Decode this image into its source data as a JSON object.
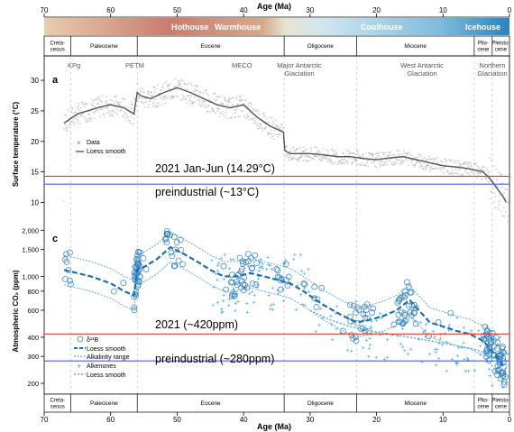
{
  "colors": {
    "hothouse": "#c97c6e",
    "warmhouse": "#d6a98c",
    "coolhouse": "#a9d3e6",
    "icehouse": "#3c8fc4",
    "temp_points": "#8a8a8a",
    "temp_smooth": "#555555",
    "boron": "#2f7fbf",
    "boron_smooth": "#1f6fa8",
    "alkenone": "#2aa0d6",
    "line_2021": "#e23a3a",
    "line_preind": "#4a5fe0"
  },
  "axis": {
    "top_label": "Age (Ma)",
    "bottom_label": "Age (Ma)",
    "x_ticks": [
      "70",
      "60",
      "50",
      "40",
      "30",
      "20",
      "10",
      "0"
    ],
    "temp_ylabel": "Surface temperature (°C)",
    "temp_ticks": [
      "10",
      "15",
      "20",
      "25",
      "30"
    ],
    "co2_ylabel": "Atmospheric CO₂ (ppm)",
    "co2_ticks": [
      "200",
      "300",
      "400",
      "600",
      "800",
      "1,000",
      "1,500",
      "2,000"
    ]
  },
  "climate_states": [
    "Hothouse",
    "Warmhouse",
    "Coolhouse",
    "Icehouse"
  ],
  "epochs": [
    "Creta-\nceous",
    "Paleocene",
    "Eocene",
    "Oligocene",
    "Miocene",
    "Plio-\ncene",
    "Pleisto-\ncene"
  ],
  "panels": {
    "a": "a",
    "c": "c"
  },
  "events": {
    "kpg": "KPg",
    "petm": "PETM",
    "meco": "MECO",
    "major_antarctic": "Major Antarctic\nGlaciation",
    "west_antarctic": "West Antarctic\nGlaciation",
    "northern": "Northern\nGlaciation"
  },
  "legend_temp": [
    "Data",
    "Loess smooth"
  ],
  "legend_co2": [
    "δ¹¹B",
    "Loess smooth",
    "Alkalinity range",
    "Alkenones",
    "Loess smooth"
  ],
  "annotations": {
    "temp_2021": "2021 Jan-Jun (14.29°C)",
    "temp_preind": "preindustrial (~13°C)",
    "co2_2021": "2021 (~420ppm)",
    "co2_preind": "preindustrial (~280ppm)"
  },
  "chart_data": [
    {
      "type": "scatter",
      "title": "",
      "xlabel": "Age (Ma)",
      "ylabel": "Surface temperature (°C)",
      "xlim": [
        70,
        0
      ],
      "ylim": [
        8,
        34
      ],
      "series": [
        {
          "name": "Loess smooth",
          "x": [
            67,
            65,
            62,
            60,
            58,
            56.5,
            56,
            55.5,
            54,
            52,
            50,
            48,
            46,
            44,
            42,
            40,
            38,
            36,
            34,
            33.8,
            33,
            30,
            28,
            26,
            24,
            22,
            20,
            18,
            16,
            14,
            12,
            10,
            8,
            6,
            4,
            3,
            2,
            1,
            0.5
          ],
          "y": [
            23,
            24.5,
            25.5,
            26,
            25.5,
            24.5,
            28,
            27.5,
            27,
            28,
            28.8,
            28,
            27,
            26,
            25.5,
            26,
            24,
            22.5,
            21.5,
            18.5,
            18,
            18,
            17.8,
            17.5,
            17.5,
            17.2,
            17,
            17.3,
            17.5,
            17,
            16.5,
            16,
            15.8,
            15.5,
            15,
            14,
            12.5,
            11,
            10
          ]
        }
      ],
      "reference_lines": [
        {
          "label": "2021 Jan-Jun (14.29°C)",
          "y": 14.29
        },
        {
          "label": "preindustrial (~13°C)",
          "y": 13
        }
      ]
    },
    {
      "type": "scatter",
      "title": "",
      "xlabel": "Age (Ma)",
      "ylabel": "Atmospheric CO₂ (ppm)",
      "xlim": [
        70,
        0
      ],
      "ylim": [
        170,
        2300
      ],
      "yscale": "log",
      "series": [
        {
          "name": "δ¹¹B loess smooth",
          "x": [
            67,
            63,
            60,
            58,
            56.5,
            56,
            55,
            53,
            51,
            49,
            47,
            45,
            43,
            41,
            39,
            37,
            35,
            33,
            31,
            28,
            25,
            23,
            21,
            19,
            17,
            16,
            15,
            14,
            13,
            12,
            10,
            8,
            6,
            4,
            3,
            2,
            1,
            0.5
          ],
          "y": [
            1100,
            1000,
            900,
            800,
            750,
            1100,
            1150,
            1300,
            1550,
            1400,
            1250,
            1100,
            1000,
            1000,
            1050,
            1000,
            950,
            900,
            800,
            650,
            550,
            500,
            520,
            550,
            600,
            650,
            700,
            620,
            560,
            500,
            470,
            440,
            420,
            380,
            340,
            300,
            260,
            250
          ]
        },
        {
          "name": "Alkenones loess smooth",
          "x": [
            30,
            27,
            24,
            21,
            18,
            15,
            12,
            9,
            6,
            4,
            2,
            1,
            0.5
          ],
          "y": [
            600,
            520,
            470,
            440,
            420,
            400,
            380,
            360,
            340,
            320,
            290,
            270,
            260
          ]
        }
      ],
      "reference_lines": [
        {
          "label": "2021 (~420ppm)",
          "y": 420
        },
        {
          "label": "preindustrial (~280ppm)",
          "y": 280
        }
      ]
    }
  ]
}
